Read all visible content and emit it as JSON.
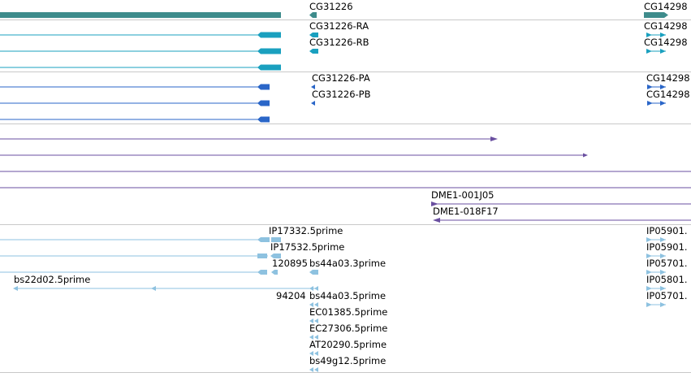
{
  "colors": {
    "gene": "#3e8c8c",
    "transcript_ensembl": "#1aa0bf",
    "transcript_refseq": "#2a66c8",
    "clone": "#6a4fa0",
    "est": "#8ec2e0",
    "separator": "#c8c8c8"
  },
  "tracks": {
    "genes": {
      "labels": [
        "CG31226",
        "CG14298"
      ]
    },
    "transcripts_a": {
      "labels": [
        "CG31226-RA",
        "CG31226-RB",
        "CG14298",
        "CG14298"
      ]
    },
    "transcripts_b": {
      "labels": [
        "CG31226-PA",
        "CG31226-PB",
        "CG14298",
        "CG14298"
      ]
    },
    "clones": {
      "labels": [
        "DME1-001J05",
        "DME1-018F17"
      ]
    },
    "ests": {
      "labels": [
        "IP17332.5prime",
        "IP17532.5prime",
        "120895",
        "bs44a03.3prime",
        "bs22d02.5prime",
        "94204",
        "bs44a03.5prime",
        "EC01385.5prime",
        "EC27306.5prime",
        "AT20290.5prime",
        "bs49g12.5prime",
        "IP05901.",
        "IP05901.",
        "IP05701.",
        "IP05801.",
        "IP05701."
      ]
    }
  }
}
